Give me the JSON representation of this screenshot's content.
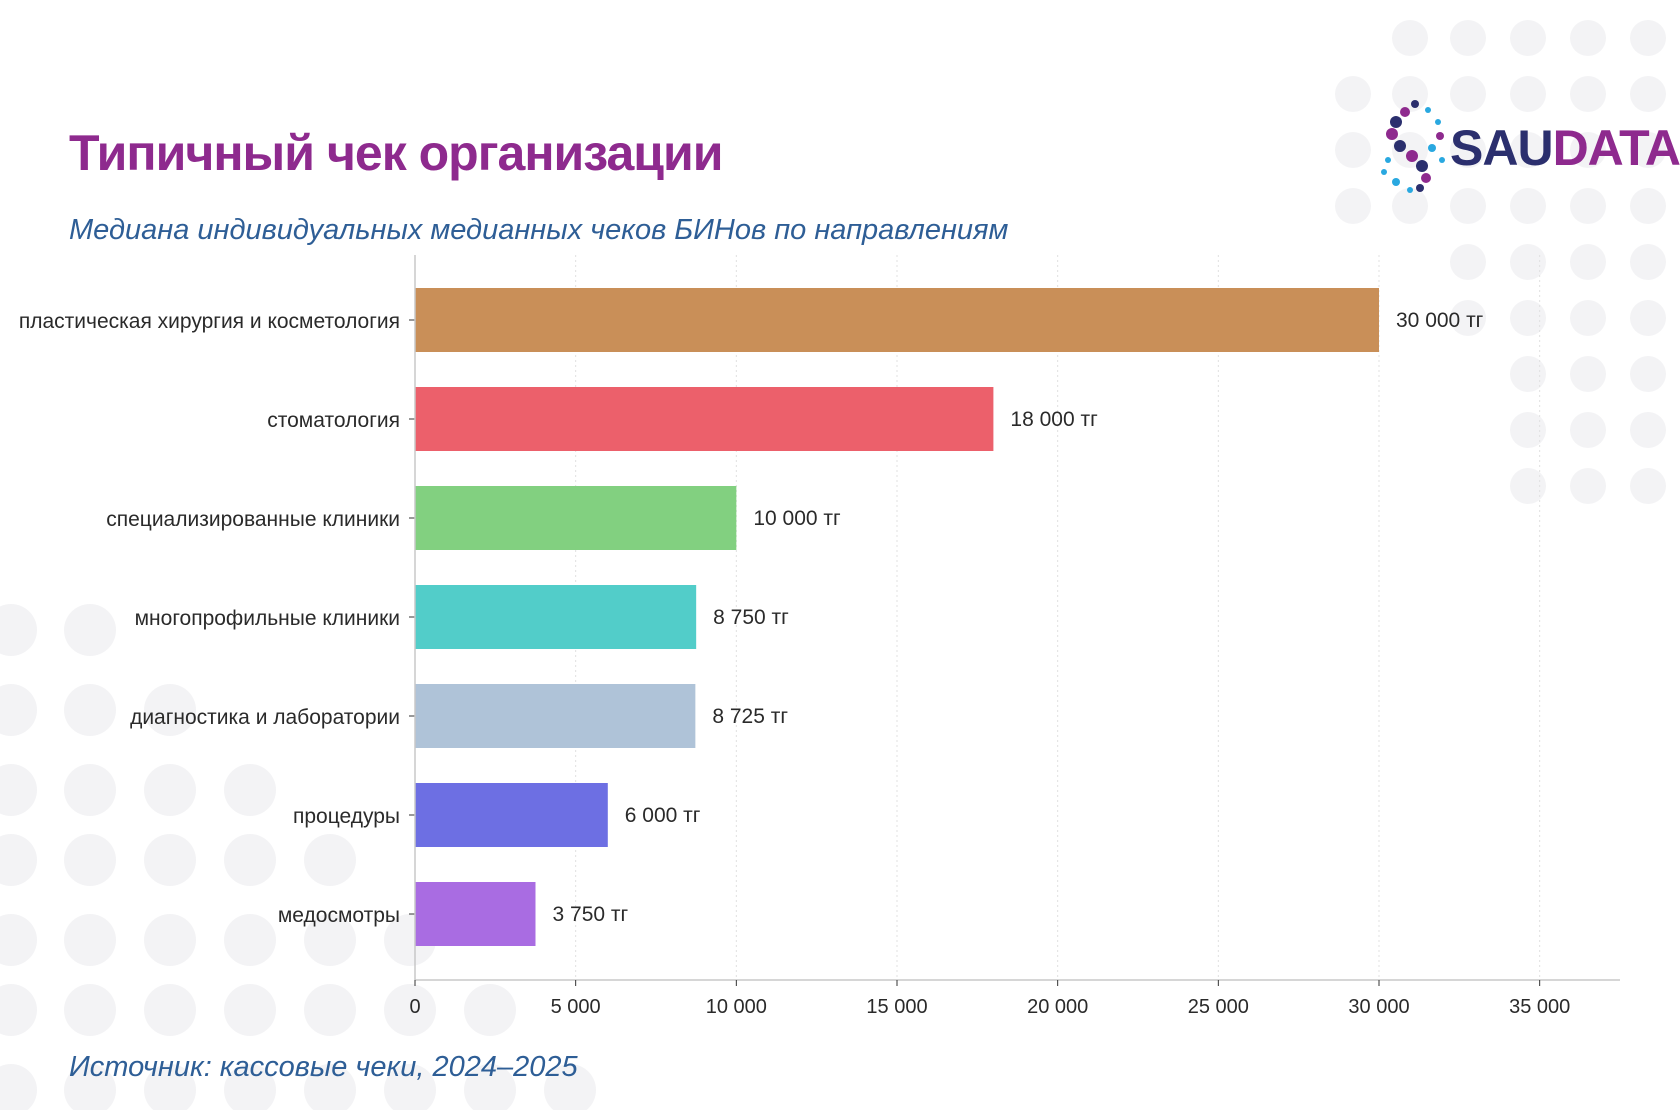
{
  "title": "Типичный чек организации",
  "subtitle": "Медиана индивидуальных медианных чеков БИНов по направлениям",
  "source": "Источник: кассовые чеки, 2024–2025",
  "logo": {
    "part1": "SAU",
    "part2": "DATA",
    "color1": "#2b2f6e",
    "color2": "#8e2a8e",
    "accent": "#29a8e0"
  },
  "chart_data": {
    "type": "bar",
    "orientation": "horizontal",
    "categories": [
      "пластическая хирургия и косметология",
      "стоматология",
      "специализированные клиники",
      "многопрофильные клиники",
      "диагностика и лаборатории",
      "процедуры",
      "медосмотры"
    ],
    "values": [
      30000,
      18000,
      10000,
      8750,
      8725,
      6000,
      3750
    ],
    "value_labels": [
      "30 000 тг",
      "18 000 тг",
      "10 000 тг",
      "8 750 тг",
      "8 725 тг",
      "6 000 тг",
      "3 750 тг"
    ],
    "colors": [
      "#c98f58",
      "#ec606b",
      "#82d080",
      "#52cdc9",
      "#afc3d8",
      "#6d6fe3",
      "#a96ce2"
    ],
    "xlim": [
      0,
      37500
    ],
    "xticks": [
      0,
      5000,
      10000,
      15000,
      20000,
      25000,
      30000,
      35000
    ],
    "xtick_labels": [
      "0",
      "5 000",
      "10 000",
      "15 000",
      "20 000",
      "25 000",
      "30 000",
      "35 000"
    ],
    "grid": true
  }
}
